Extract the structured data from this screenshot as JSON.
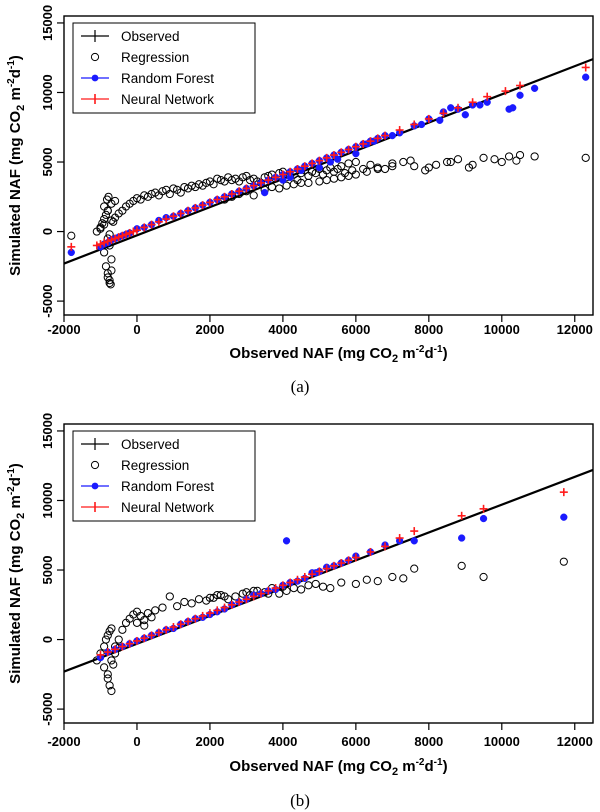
{
  "chart_data": [
    {
      "type": "scatter",
      "panel_label": "(a)",
      "xlabel": "Observed NAF (mg CO2 m-2d-1)",
      "xlabel_parts": {
        "main": "Observed NAF (mg CO",
        "sub": "2",
        "mid": " m",
        "sup": "-2",
        "tail": "d",
        "sup2": "-1",
        "end": ")"
      },
      "ylabel": "Simulated NAF (mg CO2 m-2d-1)",
      "ylabel_parts": {
        "main": "Simulated NAF (mg CO",
        "sub": "2",
        "mid": " m",
        "sup": "-2",
        "tail": "d",
        "sup2": "-1",
        "end": ")"
      },
      "xlim": [
        -2000,
        12500
      ],
      "ylim": [
        -6000,
        15500
      ],
      "xticks": [
        "-2000",
        "0",
        "2000",
        "4000",
        "6000",
        "8000",
        "10000",
        "12000"
      ],
      "yticks": [
        "-5000",
        "0",
        "5000",
        "10000",
        "15000"
      ],
      "legend": {
        "position": "top-left",
        "entries": [
          "Observed",
          "Regression",
          "Random Forest",
          "Neural Network"
        ]
      },
      "colors": {
        "observed": "#000000",
        "regression": "#000000",
        "random_forest": "#1a1aff",
        "neural_network": "#ff1a1a"
      },
      "line": {
        "name": "Observed",
        "x": [
          -2000,
          12500
        ],
        "y": [
          -2300,
          12400
        ]
      },
      "series": [
        {
          "name": "Regression",
          "marker": "open-circle",
          "x": [
            -1800,
            -1100,
            -1000,
            -950,
            -900,
            -850,
            -800,
            -750,
            -700,
            -850,
            -800,
            -750,
            -720,
            -700,
            -900,
            -800,
            -750,
            -820,
            -780,
            -1000,
            -900,
            -700,
            -650,
            -600,
            -500,
            -400,
            -300,
            -200,
            -100,
            0,
            100,
            200,
            300,
            400,
            500,
            600,
            700,
            800,
            900,
            1000,
            1100,
            1200,
            1300,
            1400,
            1500,
            1600,
            1700,
            1800,
            1900,
            2000,
            2100,
            2200,
            2300,
            2400,
            2500,
            2600,
            2700,
            2800,
            2900,
            3000,
            3100,
            3200,
            3300,
            3400,
            3500,
            3600,
            3700,
            3800,
            3900,
            4000,
            4100,
            4200,
            4300,
            4400,
            4500,
            4600,
            4700,
            4800,
            4900,
            5000,
            5100,
            5200,
            5300,
            5400,
            5500,
            5600,
            5700,
            5800,
            5900,
            6000,
            6200,
            6400,
            6600,
            6800,
            7000,
            7300,
            7600,
            7900,
            8200,
            8500,
            8800,
            9100,
            9500,
            10000,
            10500,
            10900,
            12300,
            -900,
            -800,
            -700,
            -600,
            -800,
            -750,
            3500,
            3700,
            3900,
            4100,
            4300,
            4500,
            4700,
            3200,
            3000,
            2800,
            2600,
            2400,
            5000,
            5200,
            5400,
            5600,
            5800,
            6000,
            6300,
            6600,
            7000,
            7500,
            8000,
            8600,
            9200,
            9800,
            10200,
            10400
          ],
          "y": [
            -300,
            0,
            300,
            600,
            900,
            1200,
            1500,
            -1000,
            -2000,
            -2500,
            -3000,
            -3500,
            -3800,
            -2800,
            -1500,
            -500,
            -200,
            2300,
            2500,
            200,
            500,
            800,
            700,
            1000,
            1300,
            1500,
            1800,
            2000,
            2200,
            2400,
            2300,
            2600,
            2500,
            2700,
            2800,
            2600,
            2900,
            3000,
            2700,
            3100,
            3000,
            2800,
            3200,
            3100,
            3300,
            3200,
            3400,
            3300,
            3500,
            3600,
            3400,
            3800,
            3700,
            3600,
            3900,
            3700,
            3800,
            3600,
            3900,
            4000,
            3700,
            3800,
            3600,
            3500,
            3900,
            4000,
            4100,
            3800,
            4200,
            4300,
            3900,
            4000,
            4100,
            3700,
            4200,
            4400,
            4000,
            4300,
            4200,
            4500,
            4100,
            4400,
            4600,
            4300,
            4500,
            4700,
            4200,
            4900,
            4400,
            5000,
            4500,
            4800,
            4600,
            4500,
            4900,
            5000,
            4700,
            4400,
            4800,
            5000,
            5200,
            4600,
            5300,
            5000,
            5500,
            5400,
            5300,
            1800,
            1500,
            2000,
            2200,
            -3300,
            -3700,
            3000,
            3200,
            3100,
            3300,
            3400,
            3500,
            3500,
            2600,
            2900,
            2700,
            2500,
            2300,
            3600,
            3700,
            3800,
            3900,
            4000,
            4100,
            4300,
            4500,
            4700,
            5100,
            4600,
            5000,
            4800,
            5200,
            5400,
            5100
          ]
        },
        {
          "name": "Random Forest",
          "marker": "filled-circle",
          "x": [
            -1800,
            -1000,
            -900,
            -800,
            -700,
            -600,
            -500,
            -400,
            -300,
            -200,
            0,
            200,
            400,
            600,
            800,
            1000,
            1200,
            1400,
            1600,
            1800,
            2000,
            2200,
            2400,
            2600,
            2800,
            3000,
            3200,
            3400,
            3600,
            3800,
            4000,
            4200,
            4400,
            4600,
            4800,
            5000,
            5200,
            5400,
            5600,
            5800,
            6000,
            6200,
            6400,
            6600,
            6800,
            7200,
            7600,
            8000,
            8400,
            8800,
            9200,
            9600,
            10200,
            10500,
            10900,
            12300,
            3500,
            4000,
            4200,
            4500,
            5000,
            5300,
            5500,
            6000,
            6300,
            6500,
            7000,
            7800,
            8300,
            8600,
            9000,
            9400,
            10300
          ],
          "y": [
            -1500,
            -1100,
            -900,
            -800,
            -600,
            -500,
            -400,
            -300,
            -200,
            -100,
            200,
            300,
            500,
            800,
            1000,
            1100,
            1300,
            1500,
            1700,
            1900,
            2100,
            2300,
            2500,
            2700,
            2900,
            3100,
            3300,
            3500,
            3700,
            3900,
            4100,
            4300,
            4500,
            4700,
            4900,
            5100,
            5300,
            5500,
            5700,
            5900,
            6100,
            6300,
            6500,
            6700,
            6900,
            7100,
            7600,
            8100,
            8600,
            8800,
            9100,
            9300,
            8800,
            9800,
            10300,
            11100,
            2800,
            3700,
            3900,
            4400,
            4600,
            5000,
            5200,
            5600,
            6300,
            6500,
            6900,
            7700,
            8000,
            8900,
            8400,
            9100,
            8900
          ]
        },
        {
          "name": "Neural Network",
          "marker": "plus",
          "x": [
            -1800,
            -1100,
            -1000,
            -900,
            -800,
            -700,
            -600,
            -500,
            -400,
            -300,
            -200,
            -100,
            0,
            200,
            400,
            600,
            800,
            1000,
            1200,
            1400,
            1600,
            1800,
            2000,
            2200,
            2400,
            2600,
            2800,
            3000,
            3200,
            3400,
            3600,
            3800,
            4000,
            4200,
            4400,
            4600,
            4800,
            5000,
            5200,
            5400,
            5600,
            5800,
            6000,
            6200,
            6400,
            6600,
            6800,
            7200,
            7600,
            8000,
            8400,
            8800,
            9200,
            9600,
            10100,
            10500,
            12300
          ],
          "y": [
            -1100,
            -1000,
            -900,
            -800,
            -700,
            -600,
            -500,
            -400,
            -300,
            -200,
            -100,
            0,
            100,
            300,
            500,
            700,
            900,
            1100,
            1300,
            1500,
            1700,
            1900,
            2100,
            2300,
            2500,
            2700,
            2900,
            3100,
            3300,
            3500,
            3700,
            3900,
            4100,
            4300,
            4500,
            4700,
            4900,
            5100,
            5300,
            5500,
            5700,
            5900,
            6100,
            6300,
            6500,
            6700,
            6900,
            7300,
            7700,
            8100,
            8500,
            8900,
            9300,
            9700,
            10100,
            10500,
            11800
          ]
        }
      ]
    },
    {
      "type": "scatter",
      "panel_label": "(b)",
      "xlabel": "Observed NAF (mg CO2 m-2d-1)",
      "xlabel_parts": {
        "main": "Observed NAF (mg CO",
        "sub": "2",
        "mid": " m",
        "sup": "-2",
        "tail": "d",
        "sup2": "-1",
        "end": ")"
      },
      "ylabel": "Simulated NAF (mg CO2 m-2d-1)",
      "ylabel_parts": {
        "main": "Simulated NAF (mg CO",
        "sub": "2",
        "mid": " m",
        "sup": "-2",
        "tail": "d",
        "sup2": "-1",
        "end": ")"
      },
      "xlim": [
        -2000,
        12500
      ],
      "ylim": [
        -6000,
        15500
      ],
      "xticks": [
        "-2000",
        "0",
        "2000",
        "4000",
        "6000",
        "8000",
        "10000",
        "12000"
      ],
      "yticks": [
        "-5000",
        "0",
        "5000",
        "10000",
        "15000"
      ],
      "legend": {
        "position": "top-left",
        "entries": [
          "Observed",
          "Regression",
          "Random Forest",
          "Neural Network"
        ]
      },
      "colors": {
        "observed": "#000000",
        "regression": "#000000",
        "random_forest": "#1a1aff",
        "neural_network": "#ff1a1a"
      },
      "line": {
        "name": "Observed",
        "x": [
          -2000,
          12500
        ],
        "y": [
          -2300,
          12200
        ]
      },
      "series": [
        {
          "name": "Regression",
          "marker": "open-circle",
          "x": [
            -1100,
            -1000,
            -900,
            -850,
            -800,
            -750,
            -700,
            -900,
            -800,
            -750,
            -700,
            -650,
            -600,
            -500,
            -400,
            -300,
            -200,
            -100,
            0,
            100,
            200,
            300,
            400,
            500,
            700,
            900,
            1100,
            1300,
            1500,
            1700,
            1900,
            2100,
            2300,
            2500,
            2700,
            2900,
            3100,
            3300,
            3500,
            3700,
            3900,
            4100,
            4300,
            4500,
            4700,
            4900,
            5100,
            5300,
            5600,
            6000,
            6300,
            6600,
            7000,
            7300,
            7600,
            8900,
            9500,
            11700,
            -800,
            -700,
            -600,
            -500,
            0,
            200,
            2000,
            2200,
            2400,
            3000,
            3200,
            3600,
            4000
          ],
          "y": [
            -1500,
            -1000,
            -500,
            0,
            300,
            600,
            800,
            -2000,
            -2800,
            -3300,
            -3700,
            -1800,
            -500,
            0,
            700,
            1200,
            1500,
            1800,
            2000,
            1700,
            1400,
            1900,
            1600,
            2100,
            2300,
            3100,
            2400,
            2700,
            2600,
            2900,
            2800,
            3000,
            3200,
            2900,
            3100,
            3300,
            3200,
            3500,
            3400,
            3700,
            3300,
            3500,
            3700,
            3600,
            3900,
            4000,
            3800,
            3700,
            4100,
            4000,
            4300,
            4200,
            4500,
            4400,
            5100,
            5300,
            4500,
            5600,
            -2500,
            -1500,
            -1000,
            -600,
            1200,
            1000,
            3000,
            3200,
            3100,
            3400,
            3500,
            3300,
            3800
          ]
        },
        {
          "name": "Random Forest",
          "marker": "filled-circle",
          "x": [
            -1000,
            -800,
            -600,
            -400,
            -200,
            0,
            200,
            400,
            600,
            800,
            1000,
            1200,
            1400,
            1600,
            1800,
            2000,
            2200,
            2400,
            2600,
            2800,
            3000,
            3200,
            3400,
            3600,
            3800,
            4000,
            4200,
            4400,
            4600,
            4800,
            5000,
            5200,
            5400,
            5600,
            5800,
            6000,
            6400,
            6800,
            7200,
            7600,
            8900,
            9500,
            11700,
            4100,
            4900
          ],
          "y": [
            -1300,
            -900,
            -700,
            -500,
            -300,
            -100,
            100,
            300,
            500,
            700,
            800,
            1100,
            1300,
            1500,
            1600,
            1800,
            2000,
            2200,
            2500,
            2700,
            2900,
            3200,
            3300,
            3500,
            3600,
            3900,
            4100,
            4200,
            4400,
            4800,
            4900,
            5200,
            5300,
            5500,
            5700,
            6000,
            6300,
            6800,
            7100,
            7100,
            7300,
            8700,
            8800,
            7100,
            4800
          ]
        },
        {
          "name": "Neural Network",
          "marker": "plus",
          "x": [
            -1000,
            -800,
            -600,
            -400,
            -200,
            0,
            200,
            400,
            600,
            800,
            1000,
            1200,
            1400,
            1600,
            1800,
            2000,
            2200,
            2400,
            2600,
            2800,
            3000,
            3200,
            3400,
            3600,
            3800,
            4000,
            4200,
            4400,
            4600,
            4800,
            5000,
            5200,
            5400,
            5600,
            5800,
            6000,
            6400,
            6800,
            7200,
            7600,
            8900,
            9500,
            11700
          ],
          "y": [
            -1100,
            -900,
            -700,
            -500,
            -300,
            -100,
            100,
            300,
            500,
            700,
            900,
            1100,
            1300,
            1500,
            1700,
            1900,
            2100,
            2300,
            2500,
            2700,
            2900,
            3100,
            3300,
            3500,
            3700,
            3900,
            4100,
            4300,
            4500,
            4700,
            4900,
            5100,
            5300,
            5500,
            5700,
            5900,
            6300,
            6700,
            7300,
            7800,
            8900,
            9400,
            10600
          ]
        }
      ]
    }
  ]
}
